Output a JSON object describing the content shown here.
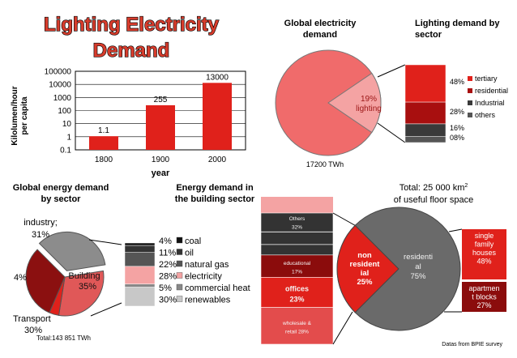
{
  "title_line1": "Lighting Electricity",
  "title_line2": "Demand",
  "source_note": "Datas from BPIE survey",
  "chart_data": [
    {
      "id": "lighting-demand",
      "type": "bar",
      "categories": [
        "1800",
        "1900",
        "2000"
      ],
      "values": [
        1.1,
        255,
        13000
      ],
      "value_labels": [
        "1.1",
        "255",
        "13000"
      ],
      "xlabel": "year",
      "ylabel_line1": "Kilolumen/hour",
      "ylabel_line2": "per capita",
      "yscale": "log",
      "ylim": [
        0.1,
        100000
      ],
      "yticks": [
        "100000",
        "10000",
        "1000",
        "100",
        "10",
        "1",
        "0.1"
      ],
      "bar_color": "#e0211b",
      "grid": true
    },
    {
      "id": "global-electricity-demand",
      "type": "pie",
      "title_line1": "Global electricity",
      "title_line2": "demand",
      "slices": [
        {
          "label": "19%",
          "label2": "lighting",
          "value": 19,
          "color": "#f4a3a3"
        },
        {
          "label": "",
          "value": 81,
          "color": "#f06b6b"
        }
      ],
      "total_label": "17200 TWh"
    },
    {
      "id": "lighting-by-sector",
      "type": "bar",
      "stacked": true,
      "title_line1": "Lighting demand by",
      "title_line2": "sector",
      "series": [
        {
          "name": "tertiary",
          "value": 48,
          "label": "48%",
          "color": "#e0211b"
        },
        {
          "name": "residential",
          "value": 28,
          "label": "28%",
          "color": "#a80f0f"
        },
        {
          "name": "Industrial",
          "value": 16,
          "label": "16%",
          "color": "#3a3a3a"
        },
        {
          "name": "others",
          "value": 8,
          "label": "08%",
          "color": "#555555"
        }
      ]
    },
    {
      "id": "energy-by-sector",
      "type": "pie",
      "title_line1": "Global energy demand",
      "title_line2": "by sector",
      "slices": [
        {
          "name": "industry",
          "label": "industry;",
          "label2": "31%",
          "value": 31,
          "color": "#8b1010"
        },
        {
          "name": "Building",
          "label": "Building",
          "label2": "35%",
          "value": 35,
          "color": "#8c8c8c"
        },
        {
          "name": "Transport",
          "label": "Transport",
          "label2": "30%",
          "value": 30,
          "color": "#e05858"
        },
        {
          "name": "other",
          "label": "4%",
          "value": 4,
          "color": "#e0211b"
        }
      ],
      "total_label": "Total:143 851 TWh"
    },
    {
      "id": "building-energy",
      "type": "bar",
      "stacked": true,
      "title_line1": "Energy demand in",
      "title_line2": "the building sector",
      "series": [
        {
          "name": "coal",
          "value": 4,
          "label": "4%",
          "color": "#111111"
        },
        {
          "name": "oil",
          "value": 11,
          "label": "11%",
          "color": "#333333"
        },
        {
          "name": "natural gas",
          "value": 22,
          "label": "22%",
          "color": "#555555"
        },
        {
          "name": "electricity",
          "value": 28,
          "label": "28%",
          "color": "#f4a3a3"
        },
        {
          "name": "commercial heat",
          "value": 5,
          "label": "5%",
          "color": "#888888"
        },
        {
          "name": "renewables",
          "value": 30,
          "label": "30%",
          "color": "#c8c8c8"
        }
      ]
    },
    {
      "id": "floor-space",
      "type": "pie",
      "total_line1_prefix": "Total: 25 000 km",
      "total_line1_sup": "2",
      "total_line2": "of useful floor space",
      "slices": [
        {
          "name": "non residential",
          "label_lines": [
            "non",
            "resident",
            "ial",
            "25%"
          ],
          "value": 25,
          "color": "#e0211b"
        },
        {
          "name": "residential",
          "label_lines": [
            "residenti",
            "al",
            "75%"
          ],
          "value": 75,
          "color": "#6a6a6a"
        }
      ]
    },
    {
      "id": "non-residential-breakdown",
      "type": "bar",
      "stacked": true,
      "series": [
        {
          "name": "Others",
          "label_lines": [
            "Others",
            "32%"
          ],
          "value": 32,
          "color": "#333333"
        },
        {
          "name": "educational",
          "label_lines": [
            "educational",
            "17%"
          ],
          "value": 17,
          "color": "#8b0c0c"
        },
        {
          "name": "offices",
          "label_lines": [
            "offices",
            "23%"
          ],
          "value": 23,
          "color": "#e0211b"
        },
        {
          "name": "wholesale & retail",
          "label_lines": [
            "wholesale &",
            "retail  28%"
          ],
          "value": 28,
          "color": "#e34c4c"
        }
      ]
    },
    {
      "id": "residential-breakdown",
      "type": "bar",
      "stacked": true,
      "series": [
        {
          "name": "single family houses",
          "label_lines": [
            "single",
            "family",
            "houses",
            "48%"
          ],
          "value": 48,
          "color": "#e0211b"
        },
        {
          "name": "apartment blocks",
          "label_lines": [
            "apartmen",
            "t blocks",
            "27%"
          ],
          "value": 27,
          "color": "#8b0c0c"
        }
      ]
    }
  ]
}
